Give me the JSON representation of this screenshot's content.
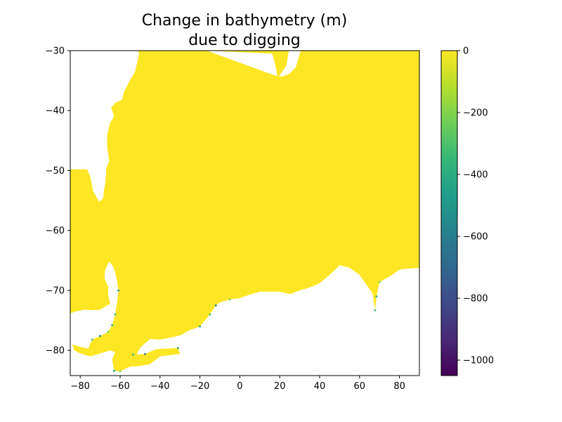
{
  "chart_data": [
    {
      "type": "heatmap",
      "title": "Change in bathymetry (m)\ndue to digging",
      "title_lines": [
        "Change in bathymetry (m)",
        "due to digging"
      ],
      "xlabel": "",
      "ylabel": "",
      "xlim": [
        -85,
        90
      ],
      "ylim": [
        -84.2,
        -30
      ],
      "x_ticks": [
        -80,
        -60,
        -40,
        -20,
        0,
        20,
        40,
        60,
        80
      ],
      "y_ticks": [
        -80,
        -70,
        -60,
        -50,
        -40,
        -30
      ],
      "x_tick_labels": [
        "−80",
        "−60",
        "−40",
        "−20",
        "0",
        "20",
        "40",
        "60",
        "80"
      ],
      "y_tick_labels": [
        "−80",
        "−70",
        "−60",
        "−50",
        "−40",
        "−30"
      ],
      "grid": false,
      "colormap": "viridis",
      "dominant_value": 0,
      "dominant_color": "#fde725",
      "missing_color": "#ffffff",
      "notes_visible": "Field is ~0 m almost everywhere; small negative values (green/teal) only along the southern coastal margin.",
      "ocean_outline_lonlat": [
        [
          -85,
          -73.8
        ],
        [
          -85,
          -49.8
        ],
        [
          -76.5,
          -49.8
        ],
        [
          -75,
          -51
        ],
        [
          -73.5,
          -53.5
        ],
        [
          -70.5,
          -55.2
        ],
        [
          -68.5,
          -54.6
        ],
        [
          -68.2,
          -53.5
        ],
        [
          -67.4,
          -52
        ],
        [
          -67,
          -50.5
        ],
        [
          -67,
          -49.6
        ],
        [
          -65.5,
          -48.5
        ],
        [
          -66.5,
          -46
        ],
        [
          -66.5,
          -44
        ],
        [
          -65,
          -42
        ],
        [
          -63,
          -41
        ],
        [
          -64.5,
          -39.5
        ],
        [
          -62,
          -38.6
        ],
        [
          -59,
          -38.2
        ],
        [
          -58,
          -36.8
        ],
        [
          -55,
          -34.9
        ],
        [
          -52.5,
          -33.5
        ],
        [
          -50.5,
          -30.5
        ],
        [
          -51,
          -30
        ],
        [
          24.5,
          -30
        ],
        [
          23.4,
          -32.5
        ],
        [
          19,
          -34.5
        ],
        [
          17.5,
          -32
        ],
        [
          16.2,
          -30.5
        ],
        [
          -16.6,
          -30
        ],
        [
          18,
          -34.2
        ],
        [
          21.5,
          -34.3
        ],
        [
          25,
          -33.8
        ],
        [
          28,
          -32.8
        ],
        [
          30.5,
          -30
        ],
        [
          90,
          -30
        ],
        [
          90,
          -66.2
        ],
        [
          80,
          -66.5
        ],
        [
          76,
          -67.5
        ],
        [
          70,
          -68.6
        ],
        [
          68.5,
          -71
        ],
        [
          67.8,
          -73.3
        ],
        [
          66.5,
          -70.5
        ],
        [
          60,
          -67.4
        ],
        [
          55,
          -66.2
        ],
        [
          50,
          -65.8
        ],
        [
          45,
          -67.4
        ],
        [
          40,
          -68.8
        ],
        [
          35,
          -69.5
        ],
        [
          30,
          -70
        ],
        [
          25,
          -70.6
        ],
        [
          20,
          -70.2
        ],
        [
          15,
          -70.2
        ],
        [
          10,
          -70.2
        ],
        [
          5,
          -70.7
        ],
        [
          0,
          -71.3
        ],
        [
          -5,
          -71.5
        ],
        [
          -10,
          -72
        ],
        [
          -12,
          -72.5
        ],
        [
          -15,
          -74
        ],
        [
          -17.5,
          -75
        ],
        [
          -20,
          -76
        ],
        [
          -25,
          -76.6
        ],
        [
          -30,
          -77.5
        ],
        [
          -35,
          -77.9
        ],
        [
          -40,
          -78.2
        ],
        [
          -45,
          -78.1
        ],
        [
          -47.5,
          -78.8
        ],
        [
          -50,
          -79.6
        ],
        [
          -52,
          -80.8
        ],
        [
          -53,
          -81
        ],
        [
          -53.5,
          -80.7
        ],
        [
          -47.5,
          -80.6
        ],
        [
          -42,
          -79.8
        ],
        [
          -31,
          -79.6
        ],
        [
          -30,
          -80.6
        ],
        [
          -35,
          -80.8
        ],
        [
          -40,
          -81
        ],
        [
          -45,
          -82.3
        ],
        [
          -50,
          -82.6
        ],
        [
          -55,
          -82.7
        ],
        [
          -60,
          -83.5
        ],
        [
          -63,
          -83.4
        ],
        [
          -64,
          -81.5
        ],
        [
          -62.5,
          -80.3
        ],
        [
          -65,
          -80
        ],
        [
          -70,
          -80.5
        ],
        [
          -75,
          -81
        ],
        [
          -80,
          -80.5
        ],
        [
          -83,
          -80
        ],
        [
          -84,
          -79
        ],
        [
          -80,
          -79.4
        ],
        [
          -76,
          -79.7
        ],
        [
          -74,
          -78.2
        ],
        [
          -70,
          -77.6
        ],
        [
          -66,
          -76.9
        ],
        [
          -64,
          -75.8
        ],
        [
          -62.5,
          -74
        ],
        [
          -61.5,
          -72
        ],
        [
          -60.8,
          -70
        ],
        [
          -61.5,
          -68.5
        ],
        [
          -62.5,
          -67
        ],
        [
          -63.5,
          -66
        ],
        [
          -65.5,
          -65.2
        ],
        [
          -67.5,
          -66.6
        ],
        [
          -67.8,
          -68
        ],
        [
          -66,
          -69.4
        ],
        [
          -66,
          -70.8
        ],
        [
          -65,
          -72.2
        ],
        [
          -70,
          -73.2
        ],
        [
          -74,
          -73.3
        ],
        [
          -78,
          -73.2
        ],
        [
          -82,
          -73.5
        ]
      ],
      "dug_margin_lonlat": [
        [
          67.8,
          -73.3
        ],
        [
          68.5,
          -71
        ],
        [
          70,
          -68.6
        ],
        [
          -60.8,
          -70
        ],
        [
          -62.5,
          -74
        ],
        [
          -64,
          -75.8
        ],
        [
          -66,
          -76.9
        ],
        [
          -70,
          -77.6
        ],
        [
          -74,
          -78.2
        ],
        [
          -63,
          -83.4
        ],
        [
          -60,
          -83.5
        ],
        [
          -12,
          -72.5
        ],
        [
          -15,
          -74
        ],
        [
          -20,
          -76
        ],
        [
          -5,
          -71.5
        ],
        [
          -47.5,
          -80.6
        ],
        [
          -53.5,
          -80.7
        ],
        [
          -31,
          -79.6
        ]
      ],
      "colorbar": {
        "vmin": -1050,
        "vmax": 0,
        "colormap": "viridis",
        "ticks": [
          0,
          -200,
          -400,
          -600,
          -800,
          -1000
        ],
        "tick_labels": [
          "0",
          "−200",
          "−400",
          "−600",
          "−800",
          "−1000"
        ],
        "stops": [
          "#440154",
          "#482878",
          "#3e4989",
          "#31688e",
          "#26828e",
          "#1f9e89",
          "#35b779",
          "#6ece58",
          "#b5de2b",
          "#fde725"
        ]
      }
    }
  ]
}
